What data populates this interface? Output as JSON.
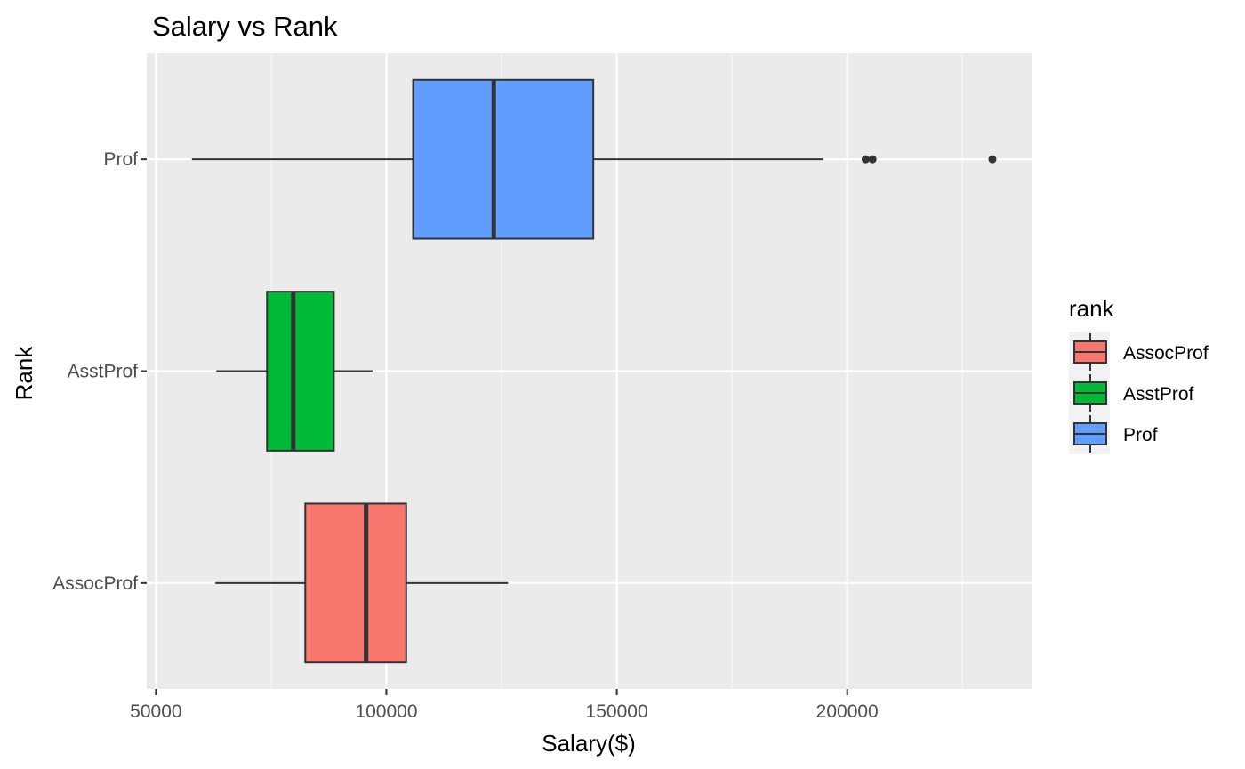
{
  "chart_data": {
    "type": "boxplot",
    "orientation": "horizontal",
    "title": "Salary vs Rank",
    "xlabel": "Salary($)",
    "ylabel": "Rank",
    "xlim": [
      48000,
      240000
    ],
    "x_ticks": [
      50000,
      100000,
      150000,
      200000
    ],
    "categories": [
      "Prof",
      "AsstProf",
      "AssocProf"
    ],
    "grid": true,
    "legend": {
      "title": "rank",
      "position": "right",
      "entries": [
        "AssocProf",
        "AsstProf",
        "Prof"
      ]
    },
    "series": [
      {
        "name": "Prof",
        "color": "#619CFF",
        "whisker_low": 57800,
        "q1": 105800,
        "median": 123300,
        "q3": 144900,
        "whisker_high": 194800,
        "outliers": [
          204000,
          205500,
          231500
        ]
      },
      {
        "name": "AsstProf",
        "color": "#00BA38",
        "whisker_low": 63100,
        "q1": 74100,
        "median": 79800,
        "q3": 88600,
        "whisker_high": 97000,
        "outliers": []
      },
      {
        "name": "AssocProf",
        "color": "#F8766D",
        "whisker_low": 62900,
        "q1": 82400,
        "median": 95600,
        "q3": 104300,
        "whisker_high": 126400,
        "outliers": []
      }
    ]
  }
}
